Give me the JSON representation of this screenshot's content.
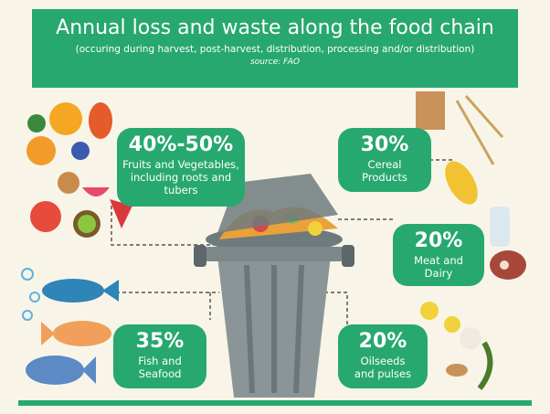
{
  "header": {
    "title": "Annual loss and waste along the food chain",
    "subtitle": "(occuring during harvest, post-harvest, distribution, processing and/or distribution)",
    "source": "source: FAO"
  },
  "items": [
    {
      "percent": "40%-50%",
      "label": "Fruits and Vegetables, including roots and tubers"
    },
    {
      "percent": "30%",
      "label": "Cereal Products"
    },
    {
      "percent": "20%",
      "label": "Meat and Dairy"
    },
    {
      "percent": "35%",
      "label": "Fish and Seafood"
    },
    {
      "percent": "20%",
      "label": "Oilseeds and pulses"
    }
  ]
}
